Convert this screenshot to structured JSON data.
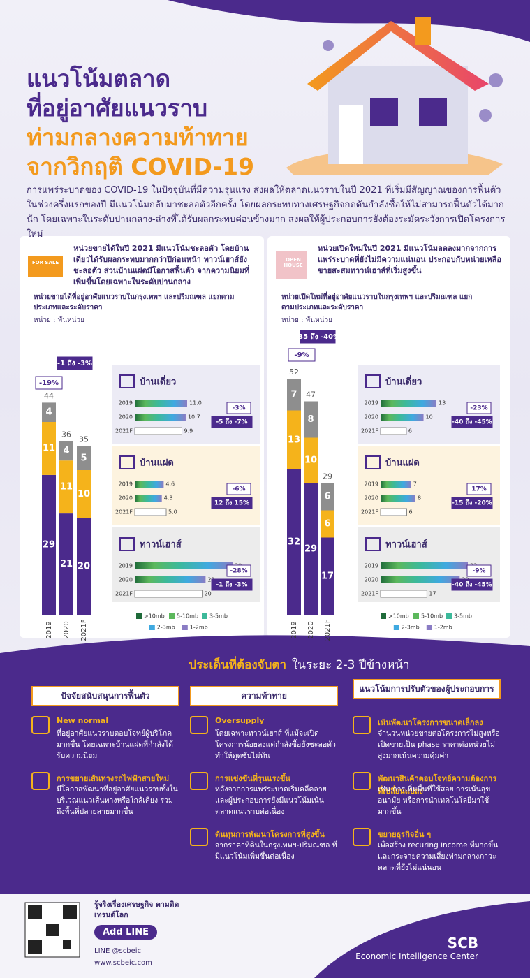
{
  "header": {
    "title": [
      "แนวโน้มตลาด",
      "ที่อยู่อาศัยแนวราบ",
      "ท่ามกลางความท้าทาย",
      "จากวิกฤติ COVID-19"
    ],
    "intro": "การแพร่ระบาดของ COVID-19 ในปัจจุบันที่มีความรุนแรง ส่งผลให้ตลาดแนวราบในปี 2021 ที่เริ่มมีสัญญาณของการฟื้นตัวในช่วงครึ่งแรกของปี มีแนวโน้มกลับมาชะลอตัวอีกครั้ง โดยผลกระทบทางเศรษฐกิจกดดันกำลังซื้อให้ไม่สามารถฟื้นตัวได้มากนัก โดยเฉพาะในระดับปานกลาง-ล่างที่ได้รับผลกระทบค่อนข้างมาก ส่งผลให้ผู้ประกอบการยังต้องระมัดระวังการเปิดโครงการใหม่"
  },
  "panels": [
    {
      "badge": "FOR SALE",
      "heading": "หน่วยขายได้ในปี 2021 มีแนวโน้มชะลอตัว โดยบ้านเดี่ยวได้รับผลกระทบมากกว่าปีก่อนหน้า ทาวน์เฮาส์ยังชะลอตัว ส่วนบ้านแฝดมีโอกาสฟื้นตัว จากความนิยมที่เพิ่มขึ้นโดยเฉพาะในระดับปานกลาง",
      "subtitle": "หน่วยขายได้ที่อยู่อาศัยแนวราบในกรุงเทพฯ และปริมณฑล แยกตามประเภทและระดับราคา",
      "unit": "หน่วย : พันหน่วย"
    },
    {
      "badge": "OPEN HOUSE",
      "heading": "หน่วยเปิดใหม่ในปี 2021 มีแนวโน้มลดลงมากจากการแพร่ระบาดที่ยังไม่มีความแน่นอน ประกอบกับหน่วยเหลือขายสะสมทาวน์เฮาส์ที่เริ่มสูงขึ้น",
      "subtitle": "หน่วยเปิดใหม่ที่อยู่อาศัยแนวราบในกรุงเทพฯ และปริมณฑล แยกตามประเภทและระดับราคา",
      "unit": "หน่วย : พันหน่วย"
    }
  ],
  "chart_data": [
    {
      "type": "stacked_bar",
      "categories": [
        "2019",
        "2020",
        "2021F"
      ],
      "series": [
        {
          "color": "#4b2a8c",
          "values": [
            29,
            21,
            20
          ]
        },
        {
          "color": "#f5b31b",
          "values": [
            11,
            11,
            10
          ]
        },
        {
          "color": "#8e8e8e",
          "values": [
            4,
            4,
            5
          ]
        }
      ],
      "totals": [
        44,
        36,
        35
      ],
      "annotations": [
        "-19%",
        "-1 ถึง -3%"
      ]
    },
    {
      "type": "stacked_bar",
      "categories": [
        "2019",
        "2020",
        "2021F"
      ],
      "series": [
        {
          "color": "#4b2a8c",
          "values": [
            32,
            29,
            17
          ]
        },
        {
          "color": "#f5b31b",
          "values": [
            13,
            10,
            6
          ]
        },
        {
          "color": "#8e8e8e",
          "values": [
            7,
            8,
            6
          ]
        }
      ],
      "totals": [
        52,
        47,
        29
      ],
      "annotations": [
        "-9%",
        "-35 ถึง -40%"
      ]
    },
    {
      "type": "hbar",
      "title": "บ้านเดี่ยว",
      "categories": [
        "2019",
        "2020",
        "2021F"
      ],
      "values": [
        11,
        10.7,
        9.9
      ],
      "value_labels": [
        "11.0",
        "10.7",
        "9.9"
      ],
      "annotations": [
        "-3%",
        "-5 ถึง -7%"
      ]
    },
    {
      "type": "hbar",
      "title": "บ้านแฝด",
      "categories": [
        "2019",
        "2020",
        "2021F"
      ],
      "values": [
        4.6,
        4.3,
        5
      ],
      "value_labels": [
        "4.6",
        "4.3",
        "5.0"
      ],
      "annotations": [
        "-6%",
        "12 ถึง 15%"
      ]
    },
    {
      "type": "hbar",
      "title": "ทาวน์เฮาส์",
      "categories": [
        "2019",
        "2020",
        "2021F"
      ],
      "values": [
        29,
        21,
        20
      ],
      "annotations": [
        "-28%",
        "-1 ถึง -3%"
      ]
    },
    {
      "type": "hbar",
      "title": "บ้านเดี่ยว",
      "categories": [
        "2019",
        "2020",
        "2021F"
      ],
      "values": [
        13,
        10,
        6
      ],
      "annotations": [
        "-23%",
        "-40 ถึง -45%"
      ]
    },
    {
      "type": "hbar",
      "title": "บ้านแฝด",
      "categories": [
        "2019",
        "2020",
        "2021F"
      ],
      "values": [
        7,
        8,
        6
      ],
      "annotations": [
        "17%",
        "-15 ถึง -20%"
      ]
    },
    {
      "type": "hbar",
      "title": "ทาวน์เฮาส์",
      "categories": [
        "2019",
        "2020",
        "2021F"
      ],
      "values": [
        32,
        29,
        17
      ],
      "annotations": [
        "-9%",
        "-40 ถึง -45%"
      ]
    }
  ],
  "legend": [
    {
      "name": ">10mb",
      "color": "#1f6b3a"
    },
    {
      "name": "5-10mb",
      "color": "#5cb85c"
    },
    {
      "name": "3-5mb",
      "color": "#3cb99a"
    },
    {
      "name": "2-3mb",
      "color": "#3fa9e0"
    },
    {
      "name": "1-2mb",
      "color": "#8a7cc4"
    }
  ],
  "watch": {
    "title": [
      "ประเด็นที่ต้องจับตา",
      "ในระยะ 2-3 ปีข้างหน้า"
    ],
    "columns": [
      {
        "heading": "ปัจจัยสนับสนุนการฟื้นตัว",
        "items": [
          {
            "title": "New normal",
            "text": "ที่อยู่อาศัยแนวราบตอบโจทย์ผู้บริโภคมากขึ้น โดยเฉพาะบ้านแฝดที่กำลังได้รับความนิยม"
          },
          {
            "title": "การขยายเส้นทางรถไฟฟ้าสายใหม่",
            "text": "มีโอกาสพัฒนาที่อยู่อาศัยแนวราบทั้งในบริเวณแนวเส้นทางหรือใกล้เคียง รวมถึงพื้นที่ปลายสายมากขึ้น"
          }
        ]
      },
      {
        "heading": "ความท้าทาย",
        "items": [
          {
            "title": "Oversupply",
            "text": "โดยเฉพาะทาวน์เฮาส์ ที่แม้จะเปิดโครงการน้อยลงแต่กำลังซื้อยังชะลอตัว ทำให้ดูดซับไม่ทัน"
          },
          {
            "title": "การแข่งขันที่รุนแรงขึ้น",
            "text": "หลังจากการแพร่ระบาดเริ่มคลี่คลาย และผู้ประกอบการยังมีแนวโน้มเน้นตลาดแนวราบต่อเนื่อง"
          },
          {
            "title": "ต้นทุนการพัฒนาโครงการที่สูงขึ้น",
            "text": "จากราคาที่ดินในกรุงเทพฯ-ปริมณฑล ที่มีแนวโน้มเพิ่มขึ้นต่อเนื่อง"
          }
        ]
      },
      {
        "heading": "แนวโน้มการปรับตัวของผู้ประกอบการ",
        "items": [
          {
            "title": "เน้นพัฒนาโครงการขนาดเล็กลง",
            "text": "จำนวนหน่วยขายต่อโครงการไม่สูงหรือเปิดขายเป็น phase ราคาต่อหน่วยไม่สูงมากเน้นความคุ้มค่า"
          },
          {
            "title": "พัฒนาสินค้าตอบโจทย์ความต้องการที่เปลี่ยนแปลง",
            "text": "เช่น การเพิ่มพื้นที่ใช้สอย การเน้นสุขอนามัย หรือการนำเทคโนโลยีมาใช้มากขึ้น"
          },
          {
            "title": "ขยายธุรกิจอื่น ๆ",
            "text": "เพื่อสร้าง recuring income ที่มากขึ้น และกระจายความเสี่ยงท่ามกลางภาวะตลาดที่ยังไม่แน่นอน"
          }
        ]
      }
    ]
  },
  "footer": {
    "tagline": "รู้จริงเรื่องเศรษฐกิจ ตามติดเทรนด์โลก",
    "button": "Add LINE",
    "line": "LINE @scbeic",
    "web": "www.scbeic.com",
    "brand": "SCB",
    "unit": "Economic Intelligence Center"
  }
}
